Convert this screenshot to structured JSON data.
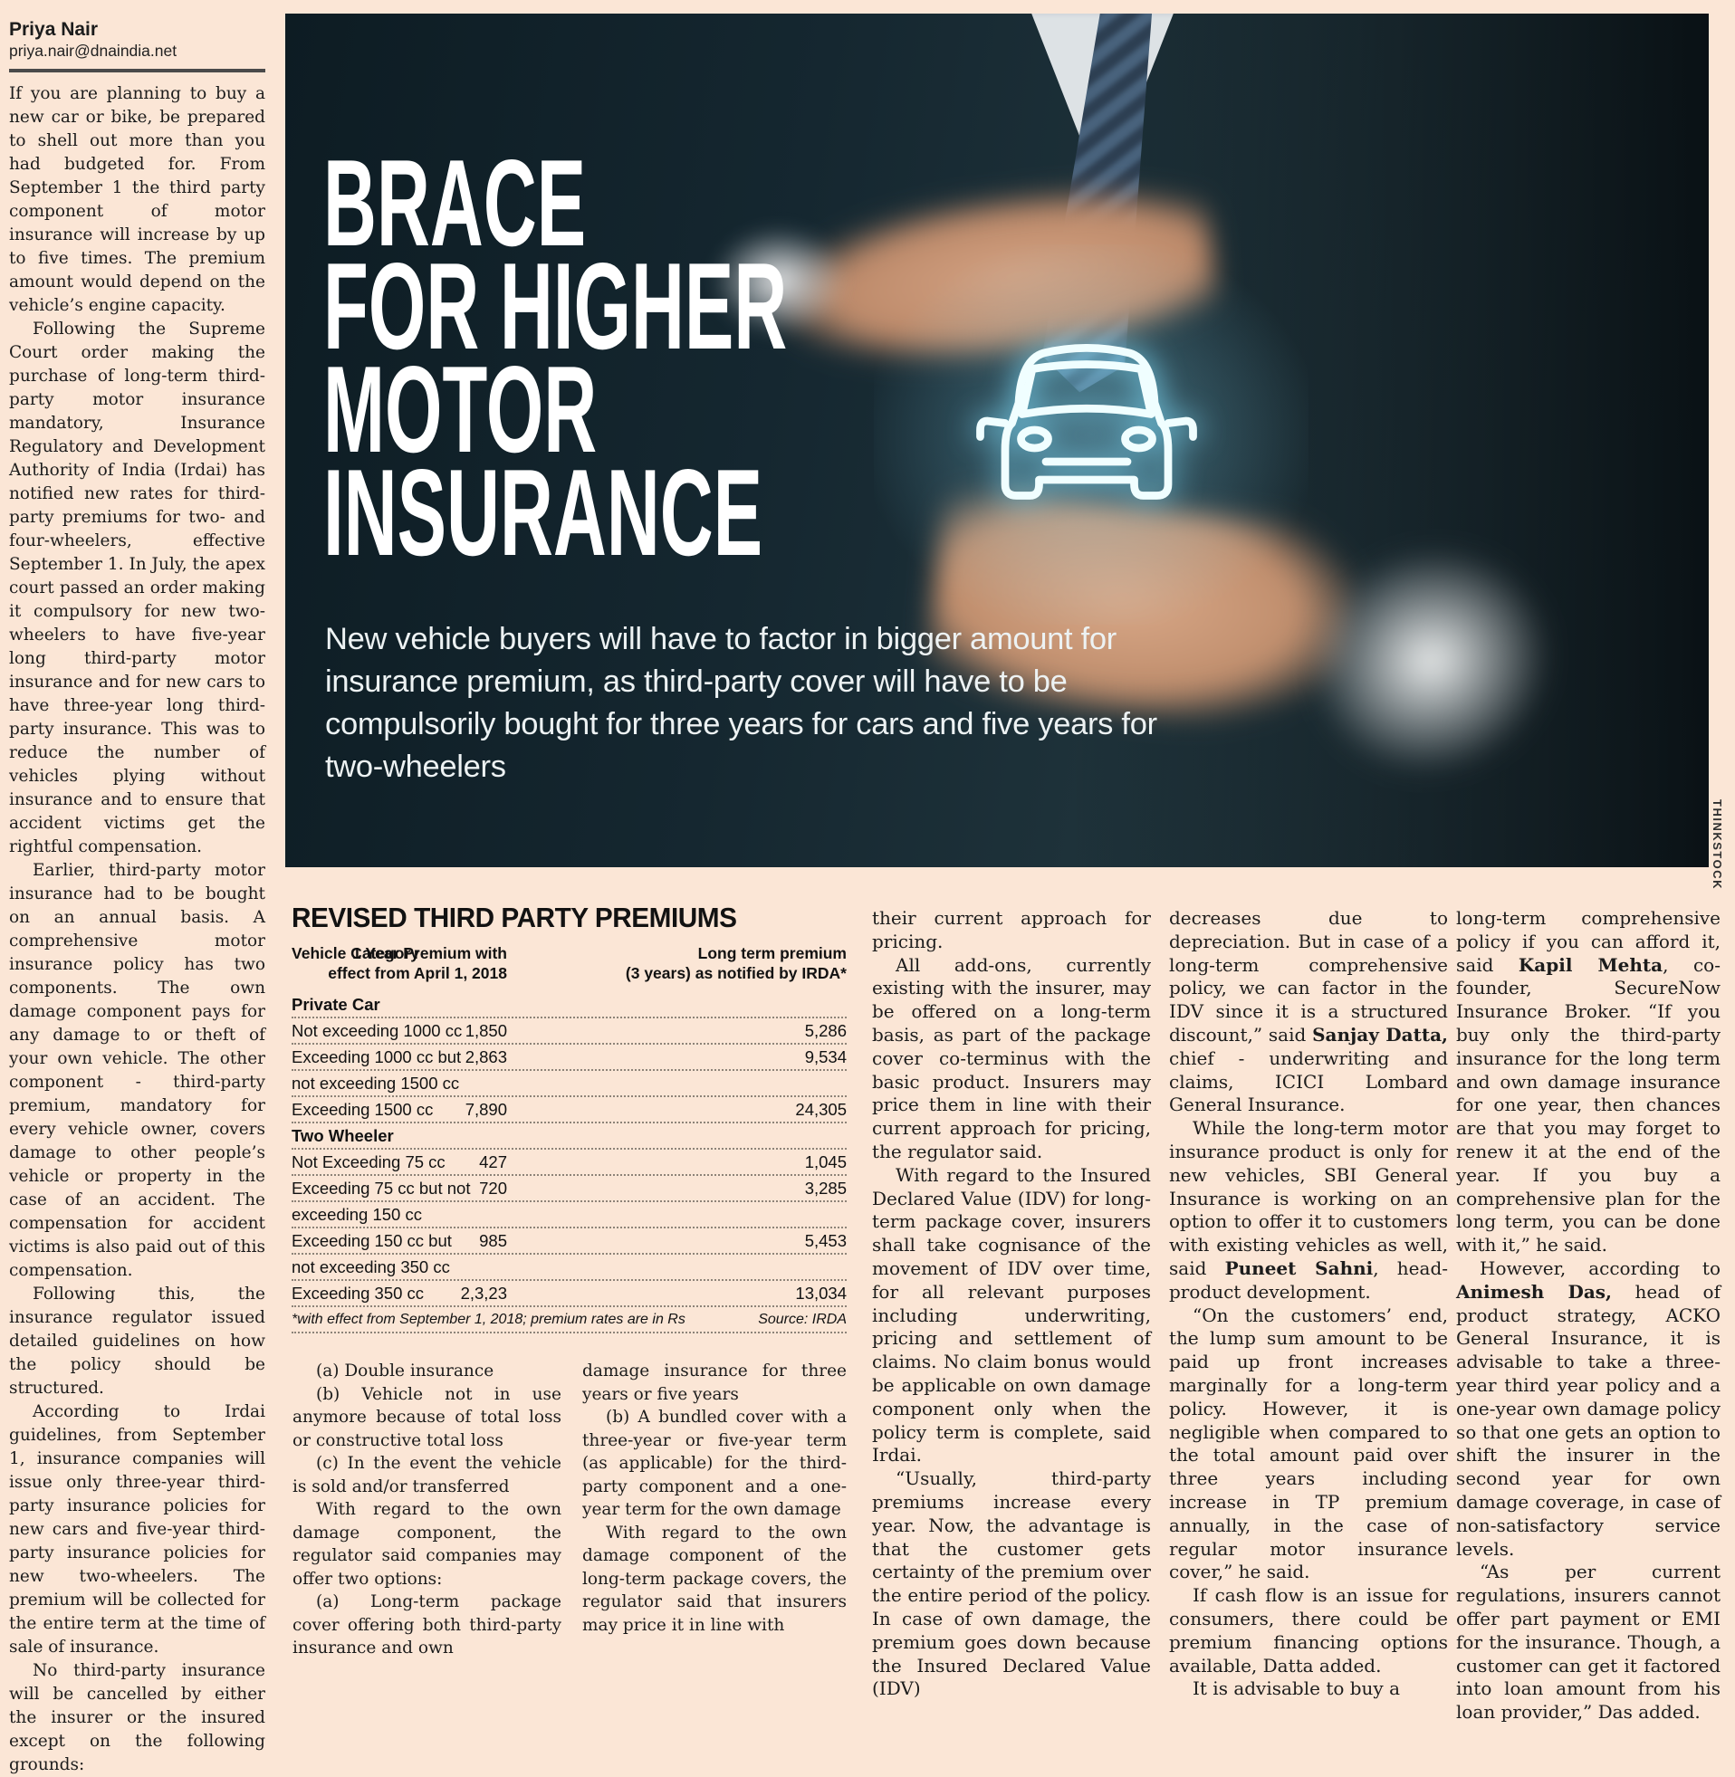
{
  "byline": {
    "name": "Priya Nair",
    "email": "priya.nair@dnaindia.net"
  },
  "photo": {
    "headline": [
      "BRACE",
      "FOR HIGHER",
      "MOTOR",
      "INSURANCE"
    ],
    "subtitle": "New vehicle buyers will have to factor in bigger amount for insurance premium, as third-party cover will have to be compulsorily bought for three years for cars and five years for two-wheelers",
    "credit": "THINKSTOCK",
    "car_icon": "car-front-icon",
    "accent_glow": "#8ce1ff",
    "background": "#16282f"
  },
  "table": {
    "title": "REVISED THIRD PARTY PREMIUMS",
    "header": {
      "c1": "Vehicle Category",
      "c2_line1": "1 Year Premium with",
      "c2_line2": "effect from April 1, 2018",
      "c3_line1": "Long term premium",
      "c3_line2": "(3 years) as notified by IRDA*"
    },
    "rows": [
      {
        "c1": "Private Car",
        "c2": "",
        "c3": "",
        "section": true
      },
      {
        "c1": "Not exceeding 1000 cc",
        "c2": "1,850",
        "c3": "5,286"
      },
      {
        "c1": "Exceeding 1000 cc but",
        "c2": "2,863",
        "c3": "9,534"
      },
      {
        "c1": "not exceeding 1500 cc",
        "c2": "",
        "c3": ""
      },
      {
        "c1": "Exceeding 1500 cc",
        "c2": "7,890",
        "c3": "24,305"
      },
      {
        "c1": "Two Wheeler",
        "c2": "",
        "c3": "",
        "section": true
      },
      {
        "c1": "Not Exceeding 75 cc",
        "c2": "427",
        "c3": "1,045"
      },
      {
        "c1": "Exceeding 75 cc but not",
        "c2": "720",
        "c3": "3,285"
      },
      {
        "c1": "exceeding 150 cc",
        "c2": "",
        "c3": ""
      },
      {
        "c1": "Exceeding 150 cc but",
        "c2": "985",
        "c3": "5,453"
      },
      {
        "c1": "not exceeding 350 cc",
        "c2": "",
        "c3": ""
      },
      {
        "c1": "Exceeding 350 cc",
        "c2": "2,3,23",
        "c3": "13,034"
      }
    ],
    "footnote": "*with effect from September 1, 2018; premium rates are in Rs",
    "source": "Source: IRDA"
  },
  "article": {
    "col1": [
      {
        "noindent": true,
        "runs": [
          "If you are planning to buy a new car or bike, be prepared to shell out more than you had budgeted for. From September 1 the third party component of motor insurance will increase by up to five times. The premium amount would depend on the vehicle’s engine capacity."
        ]
      },
      {
        "runs": [
          "Following the Supreme Court order making the purchase of long-term third-party motor insurance mandatory, Insurance Regulatory and Development Authority of India (Irdai) has notified new rates for third-party premiums for two- and four-wheelers, effective September 1. In July, the apex court passed an order making it compulsory for new two-wheelers to have five-year long third-party motor insurance and for new cars to have three-year long third-party insurance. This was to reduce the number of vehicles plying without insurance and to ensure that accident victims get the rightful compensation."
        ]
      },
      {
        "runs": [
          "Earlier, third-party motor insurance had to be bought on an annual basis. A comprehensive motor insurance policy has two components. The own damage component pays for any damage to or theft of your own vehicle. The other component - third-party premium, mandatory for every vehicle owner, covers damage to other people’s vehicle or property in the case of an accident. The compensation for accident victims is also paid out of this compensation."
        ]
      },
      {
        "runs": [
          "Following this, the insurance regulator issued detailed guidelines on how the policy should be structured."
        ]
      },
      {
        "runs": [
          "According to Irdai guidelines, from September 1, insurance companies will issue only three-year third-party insurance policies for new cars and five-year third-party insurance policies for new two-wheelers. The premium will be collected for the entire term at the time of sale of insurance."
        ]
      },
      {
        "runs": [
          "No third-party insurance will be cancelled by either the insurer or the insured except on the following grounds:"
        ]
      }
    ],
    "col2": [
      {
        "runs": [
          "(a) Double insurance"
        ]
      },
      {
        "runs": [
          "(b) Vehicle not in use anymore because of total loss or constructive total loss"
        ]
      },
      {
        "runs": [
          "(c) In the event the vehicle is sold and/or transferred"
        ]
      },
      {
        "runs": [
          "With regard to the own damage component, the regulator said companies may offer two options:"
        ]
      },
      {
        "runs": [
          "(a) Long-term package cover offering both third-party insurance and own"
        ]
      }
    ],
    "col3": [
      {
        "noindent": true,
        "runs": [
          "damage insurance for three years or five years"
        ]
      },
      {
        "runs": [
          "(b) A bundled cover with a three-year or five-year term (as applicable) for the third-party component and a one-year term for the own damage"
        ]
      },
      {
        "runs": [
          "With regard to the own damage component of the long-term package covers, the regulator said that insurers may price it in line with"
        ]
      }
    ],
    "col4": [
      {
        "noindent": true,
        "runs": [
          "their current approach for pricing."
        ]
      },
      {
        "runs": [
          "All add-ons, currently existing with the insurer, may be offered on a long-term basis, as part of the package cover co-terminus with the basic product. Insurers may price them in line with their current approach for pricing, the regulator said."
        ]
      },
      {
        "runs": [
          "With regard to the Insured Declared Value (IDV) for long-term package cover, insurers shall take cognisance of the movement of IDV over time, for all relevant purposes including underwriting, pricing and settlement of claims. No claim bonus would be applicable on own damage component only when the policy term is complete, said Irdai."
        ]
      },
      {
        "runs": [
          "“Usually, third-party premiums increase every year. Now, the advantage is that the customer gets certainty of the premium over the entire period of the policy. In case of own damage, the premium goes down because the Insured Declared Value (IDV)"
        ]
      }
    ],
    "col5": [
      {
        "noindent": true,
        "runs": [
          "decreases due to depreciation. But in case of a long-term comprehensive policy, we can factor in the IDV since it is a structured discount,” said ",
          {
            "b": "Sanjay Datta,"
          },
          " chief - underwriting and claims, ICICI Lombard General Insurance."
        ]
      },
      {
        "runs": [
          "While the long-term motor insurance product is only for new vehicles, SBI General Insurance is working on an option to offer it to customers with existing vehicles as well, said ",
          {
            "b": "Puneet Sahni"
          },
          ", head- product development."
        ]
      },
      {
        "runs": [
          "“On the customers’ end, the lump sum amount to be paid up front increases marginally for a long-term policy. However, it is negligible when compared to the total amount paid over three years including increase in TP premium annually, in the case of regular motor insurance cover,” he said."
        ]
      },
      {
        "runs": [
          "If cash flow is an issue for consumers, there could be premium financing options available, Datta added."
        ]
      },
      {
        "runs": [
          "It is advisable to buy a"
        ]
      }
    ],
    "col6": [
      {
        "noindent": true,
        "runs": [
          "long-term comprehensive policy if you can afford it, said ",
          {
            "b": "Kapil Mehta"
          },
          ", co-founder, SecureNow Insurance Broker. “If you buy only the third-party insurance for the long term and own damage insurance for one year, then chances are that you may forget to renew it at the end of the year. If you buy a comprehensive plan for the long term, you can be done with it,” he said."
        ]
      },
      {
        "runs": [
          "However, according to ",
          {
            "b": "Animesh Das,"
          },
          " head of product strategy, ACKO General Insurance, it is advisable to take a three-year third year policy and a one-year own damage policy so that one gets an option to shift the insurer in the second year for own damage coverage, in case of non-satisfactory service levels."
        ]
      },
      {
        "runs": [
          "“As per current regulations, insurers cannot offer part payment or EMI for the insurance. Though, a customer can get it factored into loan amount from his loan provider,” Das added."
        ]
      }
    ]
  }
}
